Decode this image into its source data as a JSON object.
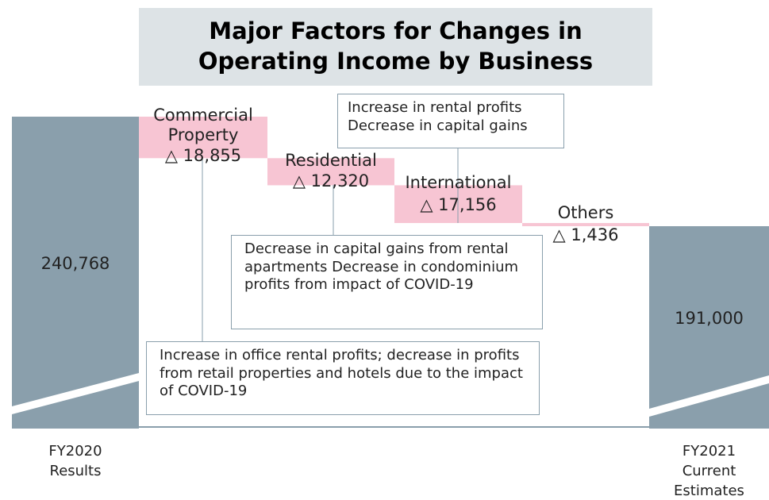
{
  "chart_data": {
    "type": "waterfall",
    "title": "Major Factors for Changes in Operating Income by Business",
    "categories": [
      "FY2020 Results",
      "Commercial Property",
      "Residential",
      "International",
      "Others",
      "FY2021 Current Estimates"
    ],
    "values": [
      240768,
      -18855,
      -12320,
      -17156,
      -1436,
      191000
    ],
    "value_labels": [
      "240,768",
      "△ 18,855",
      "△ 12,320",
      "△ 17,156",
      "△ 1,436",
      "191,000"
    ],
    "total_color": "#8a9fac",
    "change_color": "#f7c5d3",
    "annotations": [
      "Increase in rental profits Decrease in capital gains",
      "Decrease in capital gains from rental apartments Decrease in condominium profits from impact of COVID-19",
      "Increase in office rental profits; decrease in profits from retail properties and hotels due to the impact of COVID-19"
    ]
  }
}
